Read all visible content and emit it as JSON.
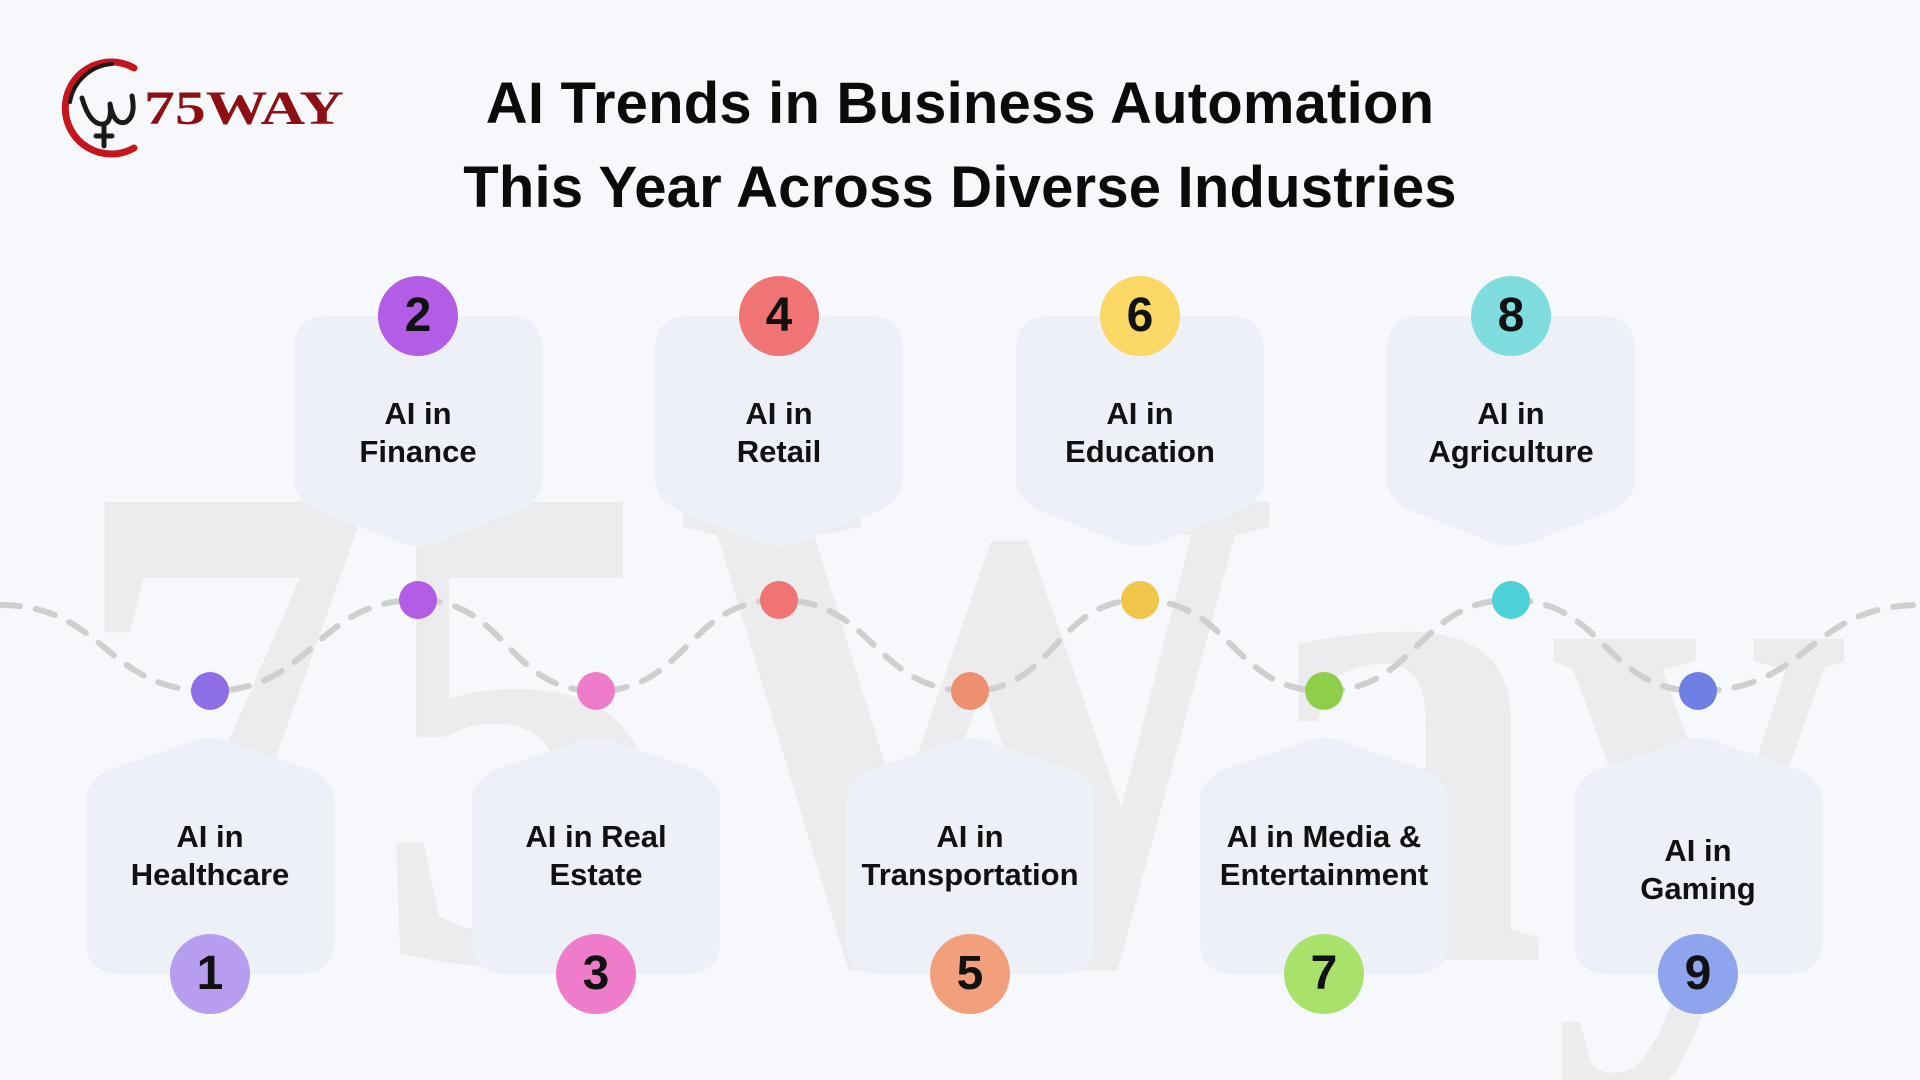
{
  "logo": {
    "text": "75WAY",
    "colors": {
      "ring": "#c4161c",
      "text": "#8c0f14",
      "emblem": "#1a1a1a"
    }
  },
  "title": {
    "line1": "AI Trends in Business Automation",
    "line2": "This Year Across Diverse Industries"
  },
  "watermark_text": "75Way",
  "items": [
    {
      "number": "1",
      "line1": "AI in",
      "line2": "Healthcare",
      "badge_color": "#b79cf0",
      "dot_color": "#8e6ee6",
      "position": "bottom"
    },
    {
      "number": "2",
      "line1": "AI in",
      "line2": "Finance",
      "badge_color": "#b35ce6",
      "dot_color": "#b35ce6",
      "position": "top"
    },
    {
      "number": "3",
      "line1": "AI in Real",
      "line2": "Estate",
      "badge_color": "#ef7cca",
      "dot_color": "#ef7cca",
      "position": "bottom"
    },
    {
      "number": "4",
      "line1": "AI in",
      "line2": "Retail",
      "badge_color": "#f07474",
      "dot_color": "#f07474",
      "position": "top"
    },
    {
      "number": "5",
      "line1": "AI in",
      "line2": "Transportation",
      "badge_color": "#f2a07c",
      "dot_color": "#ee8f6f",
      "position": "bottom"
    },
    {
      "number": "6",
      "line1": "AI in",
      "line2": "Education",
      "badge_color": "#fbd766",
      "dot_color": "#f0c64a",
      "position": "top"
    },
    {
      "number": "7",
      "line1": "AI in Media &",
      "line2": "Entertainment",
      "badge_color": "#a9e26a",
      "dot_color": "#8fce4a",
      "position": "bottom"
    },
    {
      "number": "8",
      "line1": "AI in",
      "line2": "Agriculture",
      "badge_color": "#7fdde0",
      "dot_color": "#4dd0d6",
      "position": "top"
    },
    {
      "number": "9",
      "line1": "AI in",
      "line2": "Gaming",
      "badge_color": "#8ea5ee",
      "dot_color": "#6d7fe2",
      "position": "bottom"
    }
  ],
  "colors": {
    "background": "#f7f8fc",
    "card": "#edf0f6",
    "path": "#cfcfcf",
    "watermark": "#ececee",
    "title": "#0b0b0b"
  }
}
